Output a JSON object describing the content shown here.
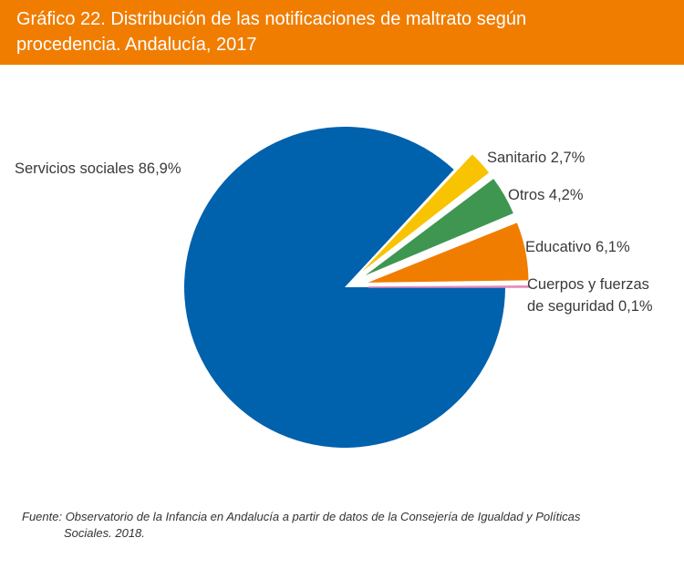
{
  "header": {
    "title_line1": "Gráfico 22. Distribución de las notificaciones de maltrato según",
    "title_line2": "procedencia. Andalucía, 2017"
  },
  "chart_data": {
    "type": "pie",
    "unit": "%",
    "title": "Gráfico 22. Distribución de las notificaciones de maltrato según procedencia. Andalucía, 2017",
    "slices": [
      {
        "name": "Servicios sociales",
        "value": 86.9,
        "label": "Servicios sociales 86,9%",
        "color": "#0061ad",
        "exploded": false
      },
      {
        "name": "Sanitario",
        "value": 2.7,
        "label": "Sanitario 2,7%",
        "color": "#f8c300",
        "exploded": true
      },
      {
        "name": "Otros",
        "value": 4.2,
        "label": "Otros 4,2%",
        "color": "#3e9651",
        "exploded": true
      },
      {
        "name": "Educativo",
        "value": 6.1,
        "label": "Educativo 6,1%",
        "color": "#f07d00",
        "exploded": true
      },
      {
        "name": "Cuerpos y fuerzas de seguridad",
        "value": 0.1,
        "label_lines": [
          "Cuerpos y fuerzas",
          "de seguridad 0,1%"
        ],
        "color": "#e58ab8",
        "exploded": true
      }
    ]
  },
  "source": {
    "line1": "Fuente: Observatorio de la Infancia en Andalucía a partir de datos de la Consejería de Igualdad y Políticas",
    "line2": "Sociales. 2018."
  }
}
